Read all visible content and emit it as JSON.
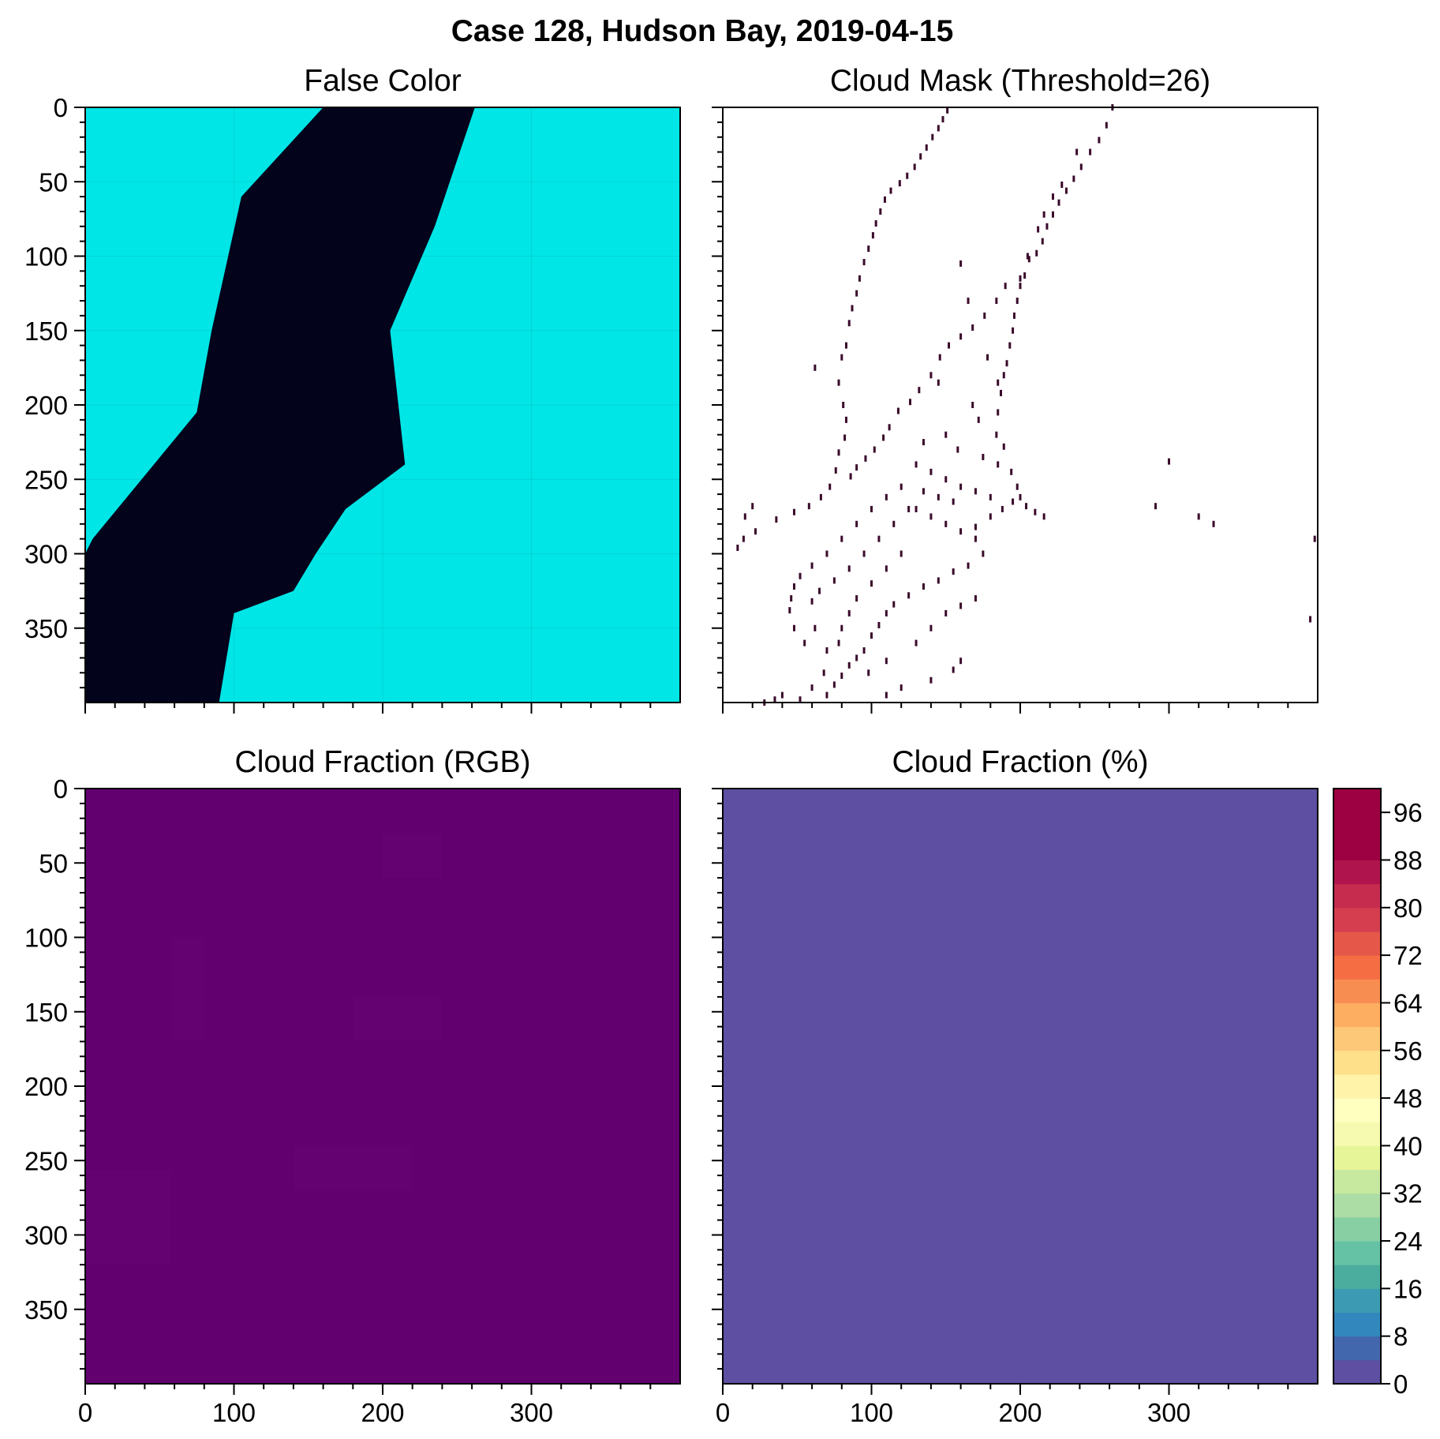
{
  "chart_data": {
    "title": "Case 128, Hudson Bay, 2019-04-15",
    "panels": [
      {
        "id": "false-color",
        "type": "heatmap",
        "title": "False Color",
        "description_kind": "image",
        "xlim": [
          0,
          400
        ],
        "ylim": [
          400,
          0
        ],
        "xticks": [
          "0",
          "100",
          "200",
          "300"
        ],
        "yticks": [
          "0",
          "50",
          "100",
          "150",
          "200",
          "250",
          "300",
          "350"
        ],
        "show_xtick_labels": false,
        "show_ytick_labels": true,
        "colors": {
          "ice": "#00e6e6",
          "water": "#03031c"
        },
        "water_left_boundary": [
          [
            160,
            0
          ],
          [
            105,
            60
          ],
          [
            85,
            150
          ],
          [
            75,
            205
          ],
          [
            5,
            290
          ],
          [
            0,
            300
          ],
          [
            0,
            400
          ]
        ],
        "water_right_boundary": [
          [
            262,
            0
          ],
          [
            235,
            80
          ],
          [
            205,
            150
          ],
          [
            215,
            240
          ],
          [
            175,
            270
          ],
          [
            155,
            300
          ],
          [
            140,
            325
          ],
          [
            100,
            340
          ],
          [
            95,
            370
          ],
          [
            90,
            400
          ]
        ]
      },
      {
        "id": "cloud-mask",
        "type": "heatmap",
        "title": "Cloud Mask (Threshold=26)",
        "xlim": [
          0,
          400
        ],
        "ylim": [
          400,
          0
        ],
        "xticks": [
          "0",
          "100",
          "200",
          "300"
        ],
        "show_xtick_labels": false,
        "show_ytick_labels": false,
        "colors": {
          "background": "#ffffff",
          "mask": "#3a0a2a"
        },
        "mask_points": [
          [
            151,
            2
          ],
          [
            148,
            8
          ],
          [
            145,
            14
          ],
          [
            141,
            20
          ],
          [
            137,
            27
          ],
          [
            133,
            33
          ],
          [
            129,
            40
          ],
          [
            124,
            46
          ],
          [
            119,
            51
          ],
          [
            113,
            56
          ],
          [
            109,
            62
          ],
          [
            106,
            70
          ],
          [
            103,
            78
          ],
          [
            101,
            86
          ],
          [
            98,
            95
          ],
          [
            95,
            104
          ],
          [
            92,
            115
          ],
          [
            90,
            125
          ],
          [
            87,
            135
          ],
          [
            85,
            145
          ],
          [
            83,
            160
          ],
          [
            80,
            168
          ],
          [
            62,
            175
          ],
          [
            78,
            185
          ],
          [
            81,
            200
          ],
          [
            83,
            210
          ],
          [
            82,
            222
          ],
          [
            78,
            232
          ],
          [
            76,
            244
          ],
          [
            72,
            255
          ],
          [
            66,
            262
          ],
          [
            58,
            268
          ],
          [
            48,
            272
          ],
          [
            36,
            277
          ],
          [
            22,
            285
          ],
          [
            14,
            290
          ],
          [
            10,
            296
          ],
          [
            262,
            0
          ],
          [
            258,
            12
          ],
          [
            253,
            22
          ],
          [
            247,
            30
          ],
          [
            241,
            40
          ],
          [
            236,
            48
          ],
          [
            231,
            56
          ],
          [
            226,
            64
          ],
          [
            222,
            72
          ],
          [
            218,
            80
          ],
          [
            215,
            90
          ],
          [
            211,
            98
          ],
          [
            206,
            102
          ],
          [
            203,
            113
          ],
          [
            200,
            120
          ],
          [
            198,
            130
          ],
          [
            196,
            140
          ],
          [
            195,
            150
          ],
          [
            193,
            160
          ],
          [
            191,
            172
          ],
          [
            189,
            180
          ],
          [
            187,
            192
          ],
          [
            185,
            205
          ],
          [
            184,
            220
          ],
          [
            189,
            228
          ],
          [
            194,
            245
          ],
          [
            198,
            255
          ],
          [
            200,
            262
          ],
          [
            204,
            268
          ],
          [
            210,
            272
          ],
          [
            216,
            275
          ],
          [
            238,
            30
          ],
          [
            228,
            52
          ],
          [
            222,
            60
          ],
          [
            216,
            72
          ],
          [
            212,
            82
          ],
          [
            205,
            100
          ],
          [
            200,
            115
          ],
          [
            190,
            120
          ],
          [
            184,
            130
          ],
          [
            176,
            140
          ],
          [
            168,
            148
          ],
          [
            160,
            154
          ],
          [
            152,
            160
          ],
          [
            146,
            168
          ],
          [
            140,
            180
          ],
          [
            132,
            190
          ],
          [
            126,
            198
          ],
          [
            118,
            204
          ],
          [
            112,
            215
          ],
          [
            108,
            222
          ],
          [
            102,
            230
          ],
          [
            96,
            236
          ],
          [
            90,
            242
          ],
          [
            86,
            248
          ],
          [
            160,
            105
          ],
          [
            165,
            130
          ],
          [
            178,
            168
          ],
          [
            185,
            185
          ],
          [
            145,
            185
          ],
          [
            168,
            200
          ],
          [
            172,
            210
          ],
          [
            150,
            220
          ],
          [
            135,
            225
          ],
          [
            158,
            230
          ],
          [
            175,
            235
          ],
          [
            185,
            240
          ],
          [
            130,
            240
          ],
          [
            140,
            245
          ],
          [
            150,
            250
          ],
          [
            160,
            255
          ],
          [
            170,
            258
          ],
          [
            180,
            262
          ],
          [
            195,
            265
          ],
          [
            120,
            255
          ],
          [
            110,
            262
          ],
          [
            100,
            270
          ],
          [
            90,
            280
          ],
          [
            80,
            290
          ],
          [
            70,
            300
          ],
          [
            60,
            308
          ],
          [
            52,
            315
          ],
          [
            48,
            322
          ],
          [
            46,
            330
          ],
          [
            45,
            338
          ],
          [
            48,
            350
          ],
          [
            55,
            360
          ],
          [
            130,
            270
          ],
          [
            140,
            275
          ],
          [
            150,
            280
          ],
          [
            160,
            285
          ],
          [
            170,
            290
          ],
          [
            175,
            300
          ],
          [
            165,
            308
          ],
          [
            155,
            312
          ],
          [
            145,
            318
          ],
          [
            135,
            322
          ],
          [
            125,
            328
          ],
          [
            115,
            334
          ],
          [
            110,
            340
          ],
          [
            105,
            348
          ],
          [
            100,
            355
          ],
          [
            95,
            365
          ],
          [
            90,
            370
          ],
          [
            85,
            375
          ],
          [
            80,
            382
          ],
          [
            75,
            388
          ],
          [
            70,
            395
          ],
          [
            98,
            380
          ],
          [
            110,
            372
          ],
          [
            130,
            360
          ],
          [
            140,
            350
          ],
          [
            150,
            340
          ],
          [
            160,
            335
          ],
          [
            170,
            330
          ],
          [
            120,
            300
          ],
          [
            110,
            310
          ],
          [
            100,
            320
          ],
          [
            90,
            330
          ],
          [
            85,
            340
          ],
          [
            80,
            350
          ],
          [
            170,
            282
          ],
          [
            180,
            275
          ],
          [
            188,
            270
          ],
          [
            155,
            265
          ],
          [
            145,
            262
          ],
          [
            135,
            258
          ],
          [
            125,
            270
          ],
          [
            115,
            280
          ],
          [
            105,
            290
          ],
          [
            95,
            300
          ],
          [
            85,
            310
          ],
          [
            75,
            318
          ],
          [
            65,
            325
          ],
          [
            60,
            332
          ],
          [
            62,
            350
          ],
          [
            70,
            365
          ],
          [
            78,
            360
          ],
          [
            68,
            380
          ],
          [
            60,
            390
          ],
          [
            52,
            398
          ],
          [
            35,
            398
          ],
          [
            40,
            395
          ],
          [
            28,
            400
          ],
          [
            110,
            395
          ],
          [
            120,
            390
          ],
          [
            140,
            385
          ],
          [
            155,
            378
          ],
          [
            160,
            372
          ],
          [
            20,
            268
          ],
          [
            15,
            275
          ],
          [
            300,
            238
          ],
          [
            291,
            268
          ],
          [
            320,
            275
          ],
          [
            330,
            280
          ],
          [
            398,
            290
          ],
          [
            395,
            344
          ]
        ]
      },
      {
        "id": "cloud-fraction-rgb",
        "type": "heatmap",
        "title": "Cloud Fraction (RGB)",
        "xlim": [
          0,
          400
        ],
        "ylim": [
          400,
          0
        ],
        "xticks": [
          "0",
          "100",
          "200",
          "300"
        ],
        "yticks": [
          "0",
          "50",
          "100",
          "150",
          "200",
          "250",
          "300",
          "350"
        ],
        "show_xtick_labels": true,
        "show_ytick_labels": true,
        "colors": {
          "fill": "#620070",
          "patch": "#650272"
        },
        "value": 0
      },
      {
        "id": "cloud-fraction-pct",
        "type": "heatmap",
        "title": "Cloud Fraction (%)",
        "xlim": [
          0,
          400
        ],
        "ylim": [
          400,
          0
        ],
        "xticks": [
          "0",
          "100",
          "200",
          "300"
        ],
        "show_xtick_labels": true,
        "show_ytick_labels": false,
        "colors": {
          "fill": "#5e4fa2"
        },
        "value": 0,
        "colorbar": {
          "min": 0,
          "max": 100,
          "step": 4,
          "tick_labels": [
            "0",
            "8",
            "16",
            "24",
            "32",
            "40",
            "48",
            "56",
            "64",
            "72",
            "80",
            "88",
            "96"
          ],
          "colors": [
            "#5e4fa2",
            "#4367ad",
            "#3288bd",
            "#3c9bb2",
            "#4bad9e",
            "#66c2a5",
            "#88cfa4",
            "#abdda4",
            "#c7e89f",
            "#e6f598",
            "#f5fab0",
            "#ffffbf",
            "#fff3aa",
            "#fee08b",
            "#fdc877",
            "#fdae61",
            "#f88d52",
            "#f46d43",
            "#e55749",
            "#d53e4f",
            "#c52c4e",
            "#b0144c",
            "#9e0142",
            "#9e0142",
            "#9e0142"
          ]
        }
      }
    ]
  }
}
